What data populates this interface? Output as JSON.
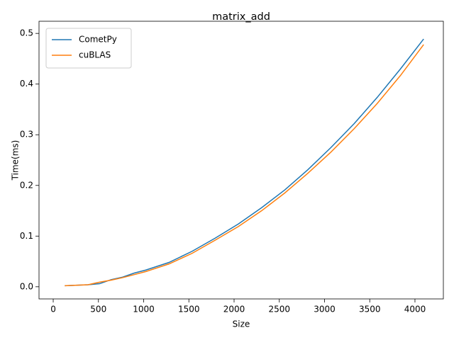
{
  "chart_data": {
    "type": "line",
    "title": "matrix_add",
    "x_label": "Size",
    "y_label": "Time(ms)",
    "x": [
      128,
      384,
      512,
      640,
      768,
      896,
      1024,
      1280,
      1536,
      1792,
      2048,
      2304,
      2560,
      2816,
      3072,
      3328,
      3584,
      3840,
      4096
    ],
    "series": [
      {
        "name": "CometPy",
        "color": "#1f77b4",
        "values": [
          0.002,
          0.004,
          0.006,
          0.014,
          0.019,
          0.027,
          0.033,
          0.048,
          0.07,
          0.096,
          0.124,
          0.156,
          0.191,
          0.231,
          0.275,
          0.322,
          0.374,
          0.43,
          0.489
        ]
      },
      {
        "name": "cuBLAS",
        "color": "#ff7f0e",
        "values": [
          0.002,
          0.004,
          0.009,
          0.013,
          0.018,
          0.024,
          0.03,
          0.045,
          0.066,
          0.092,
          0.119,
          0.15,
          0.185,
          0.224,
          0.266,
          0.312,
          0.362,
          0.417,
          0.478
        ]
      }
    ],
    "xlim": [
      -157,
      4314
    ],
    "ylim": [
      -0.024,
      0.524
    ],
    "xticks": [
      0,
      500,
      1000,
      1500,
      2000,
      2500,
      3000,
      3500,
      4000
    ],
    "yticks": [
      {
        "value": 0,
        "label": "0.0"
      },
      0.1,
      0.2,
      0.3,
      0.4,
      0.5
    ],
    "grid": false,
    "legend": "upper left"
  }
}
